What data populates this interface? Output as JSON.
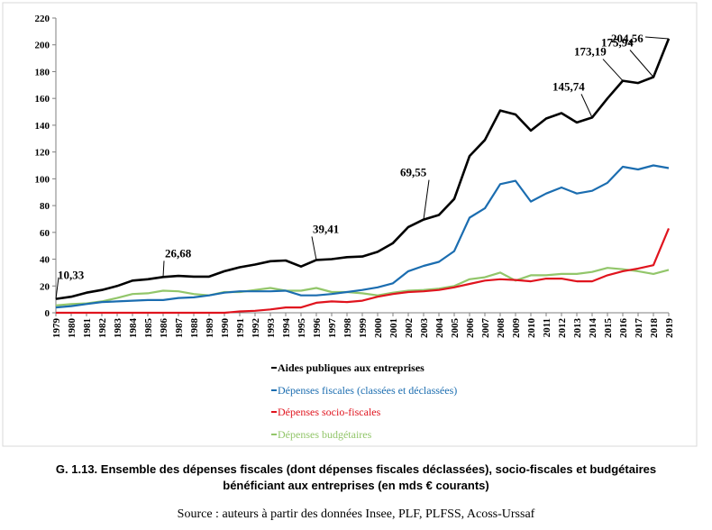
{
  "caption": {
    "title_line1": "G. 1.13. Ensemble des dépenses fiscales (dont dépenses fiscales déclassées), socio-fiscales et budgétaires",
    "title_line2": "bénéficiant aux entreprises (en mds € courants)",
    "source": "Source : auteurs à partir des données Insee, PLF, PLFSS, Acoss-Urssaf"
  },
  "chart_data": {
    "type": "line",
    "x": [
      "1979",
      "1980",
      "1981",
      "1982",
      "1983",
      "1984",
      "1985",
      "1986",
      "1987",
      "1988",
      "1989",
      "1990",
      "1991",
      "1992",
      "1993",
      "1994",
      "1995",
      "1996",
      "1997",
      "1998",
      "1999",
      "2000",
      "2001",
      "2002",
      "2003",
      "2004",
      "2005",
      "2006",
      "2007",
      "2008",
      "2009",
      "2010",
      "2011",
      "2012",
      "2013",
      "2014",
      "2015",
      "2016",
      "2017",
      "2018",
      "2019"
    ],
    "ylim": [
      0,
      220
    ],
    "yticks": [
      "0",
      "20",
      "40",
      "60",
      "80",
      "100",
      "120",
      "140",
      "160",
      "180",
      "200",
      "220"
    ],
    "grid": false,
    "legend_position": "bottom",
    "series": [
      {
        "name": "Aides publiques aux entreprises",
        "color": "#000000",
        "values": [
          10.33,
          12,
          15,
          17,
          20,
          24,
          25,
          26.68,
          27.5,
          27,
          27,
          31,
          34,
          36,
          38.5,
          39,
          34.5,
          39.41,
          40,
          41.5,
          42,
          45.5,
          52,
          64,
          69.55,
          73,
          85,
          117,
          129,
          151,
          148,
          136,
          145,
          149,
          142,
          145.74,
          160,
          173.19,
          171.5,
          175.94,
          204.56
        ]
      },
      {
        "name": "Dépenses fiscales (classées et déclassées)",
        "color": "#1b6db0",
        "values": [
          4,
          5,
          6.5,
          8,
          8.5,
          9,
          9.5,
          9.5,
          11,
          11.5,
          13,
          15,
          16,
          16,
          16,
          16.5,
          13,
          13,
          14,
          15.5,
          17,
          19,
          22,
          31,
          35,
          38,
          46,
          71,
          78,
          96,
          98.5,
          83,
          89,
          93.5,
          89,
          91,
          97,
          109,
          107,
          110,
          108
        ]
      },
      {
        "name": "Dépenses socio-fiscales",
        "color": "#e0141e",
        "values": [
          0,
          0,
          0,
          0,
          0,
          0,
          0,
          0,
          0,
          0,
          0,
          0,
          1,
          1.5,
          2.5,
          4,
          4,
          7.5,
          8.5,
          8,
          9,
          12,
          14,
          15.5,
          16,
          17,
          19,
          21.5,
          24,
          25,
          24.5,
          23.5,
          25.5,
          25.5,
          23.5,
          23.5,
          28,
          31,
          33,
          35.5,
          63
        ]
      },
      {
        "name": "Dépenses budgétaires",
        "color": "#92c66a",
        "values": [
          5.5,
          6.5,
          7,
          8.5,
          11,
          14,
          14.5,
          16.5,
          16,
          14,
          13,
          15.5,
          15.5,
          17,
          18.5,
          16.5,
          16.5,
          18.5,
          15.5,
          15.5,
          14.5,
          13,
          15,
          16.5,
          17,
          18,
          20,
          25,
          26.5,
          30,
          24,
          28,
          28,
          29,
          29,
          30.5,
          33.5,
          32.5,
          31,
          29,
          32
        ]
      }
    ],
    "annotations": [
      {
        "label": "10,33",
        "year": "1979",
        "value": 10.33
      },
      {
        "label": "26,68",
        "year": "1986",
        "value": 26.68
      },
      {
        "label": "39,41",
        "year": "1996",
        "value": 39.41
      },
      {
        "label": "69,55",
        "year": "2003",
        "value": 69.55
      },
      {
        "label": "145,74",
        "year": "2014",
        "value": 145.74
      },
      {
        "label": "173,19",
        "year": "2016",
        "value": 173.19
      },
      {
        "label": "175,94",
        "year": "2018",
        "value": 175.94
      },
      {
        "label": "204,56",
        "year": "2019",
        "value": 204.56
      }
    ]
  }
}
